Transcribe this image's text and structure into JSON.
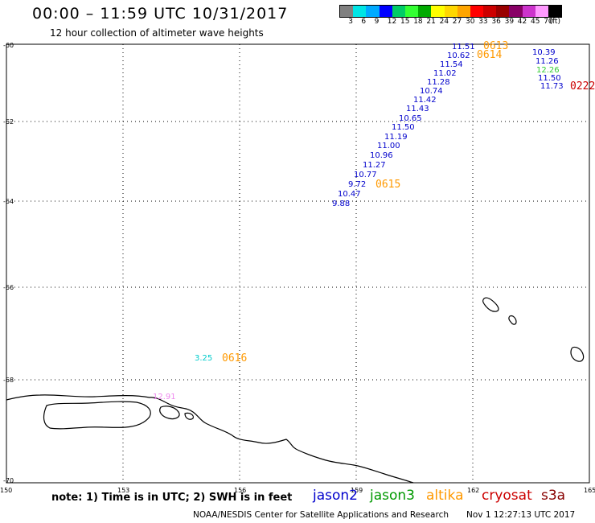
{
  "header": {
    "title": "00:00 – 11:59 UTC 10/31/2017",
    "subtitle": "12 hour collection of altimeter wave heights"
  },
  "legend": {
    "unit": "(ft)",
    "colors": [
      "#808080",
      "#00e5e5",
      "#00aaff",
      "#0000ff",
      "#00cc66",
      "#33ff33",
      "#00aa00",
      "#ffff00",
      "#ffd700",
      "#ffa500",
      "#ff0000",
      "#cc0000",
      "#990000",
      "#880066",
      "#cc33cc",
      "#ff99ff",
      "#000000"
    ],
    "ticks": [
      "3",
      "6",
      "9",
      "12",
      "15",
      "18",
      "21",
      "24",
      "27",
      "30",
      "33",
      "36",
      "39",
      "42",
      "45",
      "70"
    ]
  },
  "map": {
    "lat_labels": [
      "-60",
      "-62",
      "-64",
      "-66",
      "-68",
      "-70"
    ],
    "lon_labels": [
      "150",
      "153",
      "156",
      "159",
      "162",
      "165"
    ]
  },
  "observations": [
    {
      "text": "11.51",
      "color": "#0000cc"
    },
    {
      "text": "10.62",
      "color": "#0000cc"
    },
    {
      "text": "11.54",
      "color": "#0000cc"
    },
    {
      "text": "11.02",
      "color": "#0000cc"
    },
    {
      "text": "11.28",
      "color": "#0000cc"
    },
    {
      "text": "10.74",
      "color": "#0000cc"
    },
    {
      "text": "11.42",
      "color": "#0000cc"
    },
    {
      "text": "11.43",
      "color": "#0000cc"
    },
    {
      "text": "10.65",
      "color": "#0000cc"
    },
    {
      "text": "11.50",
      "color": "#0000cc"
    },
    {
      "text": "11.19",
      "color": "#0000cc"
    },
    {
      "text": "11.00",
      "color": "#0000cc"
    },
    {
      "text": "10.96",
      "color": "#0000cc"
    },
    {
      "text": "11.27",
      "color": "#0000cc"
    },
    {
      "text": "10.77",
      "color": "#0000cc"
    },
    {
      "text": "9.72",
      "color": "#0000cc"
    },
    {
      "text": "10.47",
      "color": "#0000cc"
    },
    {
      "text": "9.88",
      "color": "#0000cc"
    },
    {
      "text": "10.39",
      "color": "#0000cc"
    },
    {
      "text": "11.26",
      "color": "#0000cc"
    },
    {
      "text": "12.26",
      "color": "#33cc33"
    },
    {
      "text": "11.50",
      "color": "#0000cc"
    },
    {
      "text": "11.73",
      "color": "#0000cc"
    },
    {
      "text": "3.25",
      "color": "#00cccc"
    },
    {
      "text": "12.91",
      "color": "#ee88ee"
    }
  ],
  "times": [
    {
      "text": "0613",
      "color": "#ff9900"
    },
    {
      "text": "0614",
      "color": "#ff9900"
    },
    {
      "text": "0615",
      "color": "#ff9900"
    },
    {
      "text": "0616",
      "color": "#ff9900"
    },
    {
      "text": "0222",
      "color": "#cc0000"
    }
  ],
  "footer": {
    "note": "note: 1) Time is in UTC; 2) SWH is in feet",
    "satellites": [
      {
        "name": "jason2",
        "color": "#0000cc"
      },
      {
        "name": "jason3",
        "color": "#009900"
      },
      {
        "name": "altika",
        "color": "#ff9900"
      },
      {
        "name": "cryosat",
        "color": "#cc0000"
      },
      {
        "name": "s3a",
        "color": "#880000"
      }
    ],
    "credit": "NOAA/NESDIS Center for Satellite Applications and Research",
    "timestamp": "Nov 1 12:27:13 UTC 2017"
  }
}
